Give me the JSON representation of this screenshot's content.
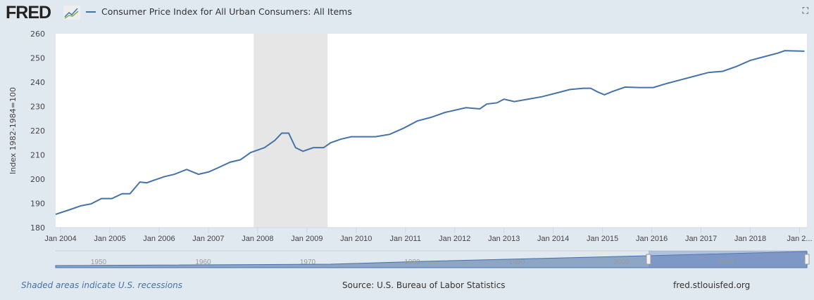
{
  "logo": "FRED",
  "legend": "Consumer Price Index for All Urban Consumers: All Items",
  "footer": {
    "recessions": "Shaded areas indicate U.S. recessions",
    "source": "Source: U.S. Bureau of Labor Statistics",
    "site": "fred.stlouisfed.org"
  },
  "navigator": {
    "labels": [
      "1950",
      "1960",
      "1970",
      "1980",
      "1990",
      "2000",
      "2010"
    ]
  },
  "colors": {
    "series": "#4572a7",
    "recession": "#e6e6e6",
    "bg": "#e1e9f0"
  },
  "chart_data": {
    "type": "line",
    "title": "Consumer Price Index for All Urban Consumers: All Items",
    "ylabel": "Index 1982-1984=100",
    "xlabel": "",
    "ylim": [
      180,
      260
    ],
    "xlim": [
      2003.9,
      2019.15
    ],
    "yticks": [
      180,
      190,
      200,
      210,
      220,
      230,
      240,
      250,
      260
    ],
    "xticks": [
      {
        "v": 2004,
        "l": "Jan 2004"
      },
      {
        "v": 2005,
        "l": "Jan 2005"
      },
      {
        "v": 2006,
        "l": "Jan 2006"
      },
      {
        "v": 2007,
        "l": "Jan 2007"
      },
      {
        "v": 2008,
        "l": "Jan 2008"
      },
      {
        "v": 2009,
        "l": "Jan 2009"
      },
      {
        "v": 2010,
        "l": "Jan 2010"
      },
      {
        "v": 2011,
        "l": "Jan 2011"
      },
      {
        "v": 2012,
        "l": "Jan 2012"
      },
      {
        "v": 2013,
        "l": "Jan 2013"
      },
      {
        "v": 2014,
        "l": "Jan 2014"
      },
      {
        "v": 2015,
        "l": "Jan 2015"
      },
      {
        "v": 2016,
        "l": "Jan 2016"
      },
      {
        "v": 2017,
        "l": "Jan 2017"
      },
      {
        "v": 2018,
        "l": "Jan 2018"
      },
      {
        "v": 2019,
        "l": "Jan 2..."
      }
    ],
    "recessions": [
      [
        2007.92,
        2009.42
      ]
    ],
    "x": [
      2003.9,
      2004.2,
      2004.41,
      2004.62,
      2004.83,
      2005.04,
      2005.25,
      2005.41,
      2005.61,
      2005.75,
      2005.89,
      2006.1,
      2006.31,
      2006.56,
      2006.8,
      2007.01,
      2007.23,
      2007.44,
      2007.65,
      2007.86,
      2008.14,
      2008.35,
      2008.49,
      2008.63,
      2008.77,
      2008.92,
      2009.13,
      2009.34,
      2009.48,
      2009.69,
      2009.9,
      2010.39,
      2010.68,
      2010.96,
      2011.24,
      2011.52,
      2011.8,
      2012.23,
      2012.51,
      2012.65,
      2012.86,
      2013.0,
      2013.21,
      2013.49,
      2013.77,
      2014.06,
      2014.34,
      2014.62,
      2014.76,
      2014.9,
      2015.04,
      2015.18,
      2015.46,
      2015.75,
      2016.03,
      2016.31,
      2016.59,
      2016.87,
      2017.15,
      2017.44,
      2017.72,
      2018.0,
      2018.28,
      2018.56,
      2018.7,
      2019.1
    ],
    "y": [
      185.5,
      187.5,
      189,
      189.8,
      192,
      192,
      194,
      194,
      198.8,
      198.5,
      199.5,
      201,
      202,
      204,
      202,
      203,
      205,
      207,
      208,
      211,
      213,
      216,
      219,
      219,
      213,
      211.5,
      213,
      213,
      215,
      216.5,
      217.5,
      217.5,
      218.5,
      221,
      224,
      225.5,
      227.5,
      229.5,
      229,
      231,
      231.5,
      233,
      232,
      233,
      234,
      235.5,
      237,
      237.5,
      237.5,
      236,
      234.8,
      236,
      238,
      237.8,
      237.8,
      239.5,
      241,
      242.5,
      244,
      244.5,
      246.5,
      249,
      250.5,
      252,
      253,
      252.8
    ]
  }
}
